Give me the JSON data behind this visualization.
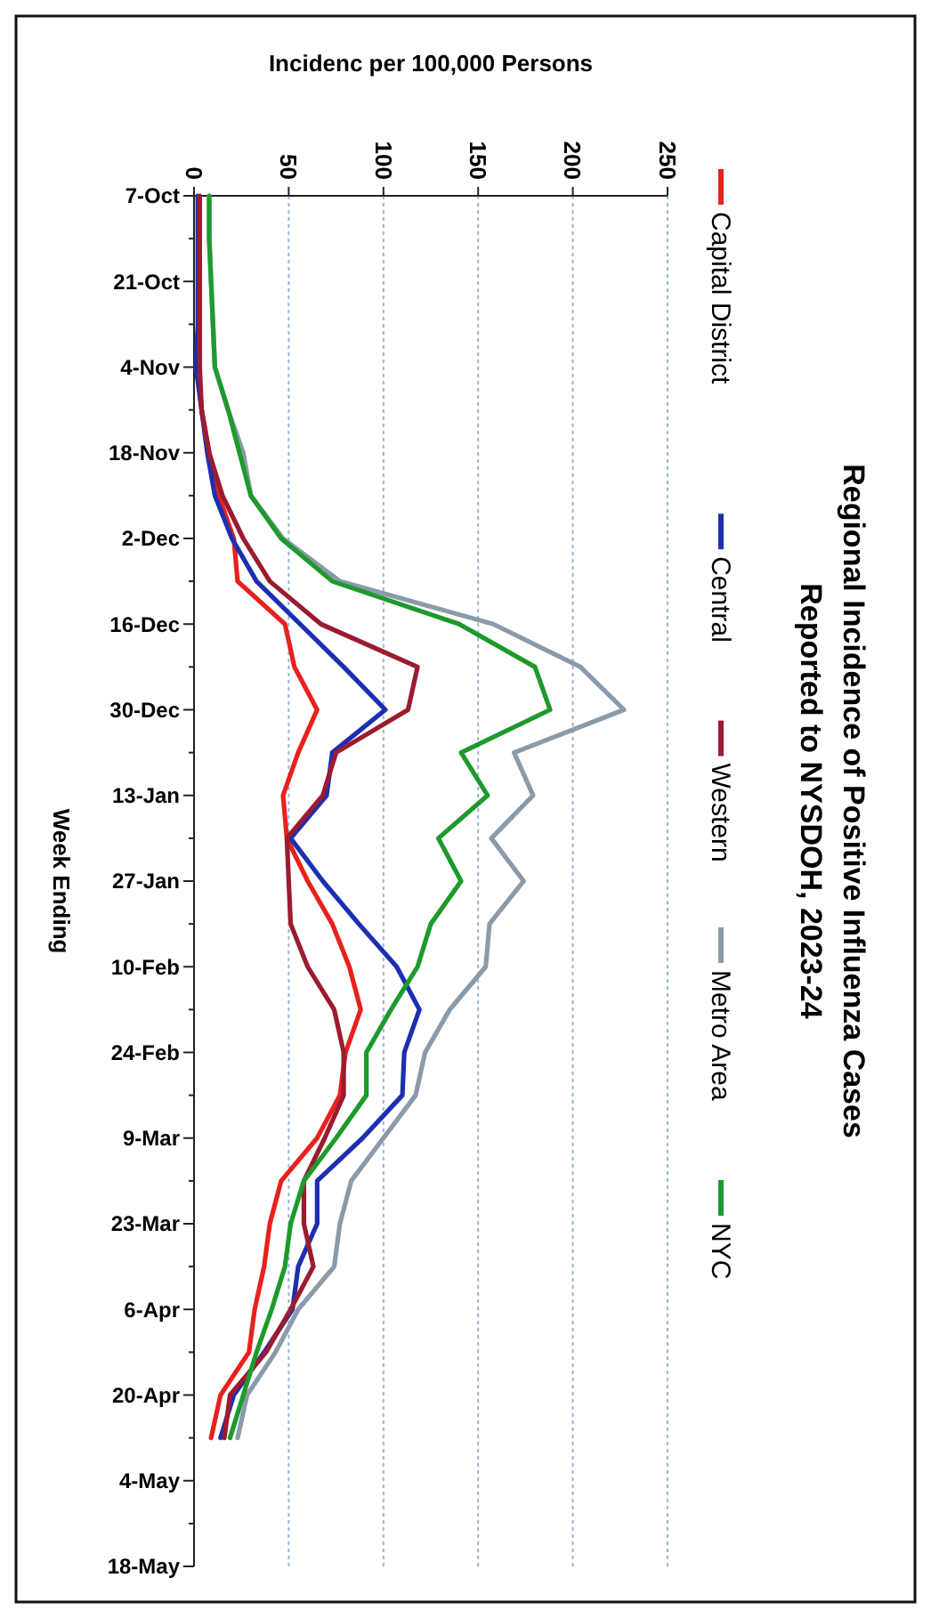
{
  "chart_data": {
    "type": "line",
    "title": "Regional Incidence of Positive Influenza Cases Reported to NYSDOH, 2023-24",
    "xlabel": "Incidenc  per 100,000 Persons",
    "ylabel": "Week Ending",
    "categories": [
      "7-Oct",
      null,
      "21-Oct",
      null,
      "4-Nov",
      null,
      "18-Nov",
      null,
      "2-Dec",
      null,
      "16-Dec",
      null,
      "30-Dec",
      null,
      "13-Jan",
      null,
      "27-Jan",
      null,
      "10-Feb",
      null,
      "24-Feb",
      null,
      "9-Mar",
      null,
      "23-Mar",
      null,
      "6-Apr",
      null,
      "20-Apr",
      null,
      "4-May",
      null,
      "18-May"
    ],
    "series": [
      {
        "name": "Capital District",
        "color": "#e8211c",
        "values": [
          null,
          null,
          null,
          null,
          2,
          4,
          8,
          13,
          21,
          23,
          48,
          53,
          65,
          55,
          47,
          49,
          60,
          73,
          82,
          88,
          80,
          77,
          65,
          46,
          40,
          37,
          32,
          29,
          14,
          9,
          null,
          null,
          null
        ]
      },
      {
        "name": "Central",
        "color": "#1c2fb0",
        "values": [
          2,
          2,
          2,
          2,
          1,
          4,
          7,
          11,
          20,
          33,
          56,
          79,
          101,
          73,
          70,
          51,
          68,
          87,
          107,
          119,
          111,
          110,
          89,
          65,
          65,
          55,
          52,
          37,
          21,
          14,
          null,
          null,
          null
        ]
      },
      {
        "name": "Western",
        "color": "#9b1b30",
        "values": [
          3,
          3,
          3,
          3,
          3,
          4,
          8,
          15,
          26,
          40,
          67,
          118,
          113,
          75,
          68,
          49,
          50,
          51,
          60,
          74,
          79,
          79,
          69,
          58,
          58,
          63,
          51,
          38,
          19,
          16,
          null,
          null,
          null
        ]
      },
      {
        "name": "Metro Area",
        "color": "#8a9aa8",
        "values": [
          8,
          8,
          9,
          10,
          11,
          18,
          26,
          30,
          47,
          77,
          158,
          204,
          227,
          169,
          179,
          157,
          174,
          156,
          154,
          135,
          122,
          117,
          100,
          83,
          77,
          74,
          55,
          43,
          28,
          23,
          null,
          null,
          null
        ]
      },
      {
        "name": "NYC",
        "color": "#1e9a2c",
        "values": [
          8,
          8,
          9,
          10,
          11,
          18,
          24,
          30,
          46,
          73,
          140,
          180,
          188,
          141,
          155,
          129,
          141,
          125,
          118,
          104,
          91,
          91,
          75,
          58,
          51,
          48,
          41,
          33,
          26,
          19,
          null,
          null,
          null
        ]
      }
    ],
    "orientation": "horizontal",
    "xlim": [
      0,
      250
    ],
    "xticks": [
      0,
      50,
      100,
      150,
      200,
      250
    ],
    "grid": "x",
    "legend": "right",
    "marker": "none",
    "line_style": "solid"
  }
}
